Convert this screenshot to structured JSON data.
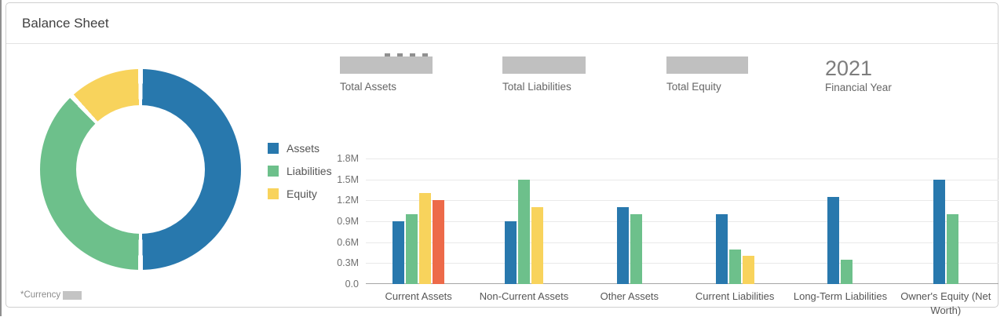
{
  "header": {
    "title": "Balance Sheet"
  },
  "kpis": [
    {
      "label": "Total Assets",
      "value": "",
      "redacted": true
    },
    {
      "label": "Total Liabilities",
      "value": "",
      "redacted": true
    },
    {
      "label": "Total Equity",
      "value": "",
      "redacted": true
    },
    {
      "label": "Financial Year",
      "value": "2021",
      "redacted": false
    }
  ],
  "legend": [
    {
      "label": "Assets",
      "color": "#2878ad"
    },
    {
      "label": "Liabilities",
      "color": "#6dc08b"
    },
    {
      "label": "Equity",
      "color": "#f8d35c"
    }
  ],
  "footnote": {
    "label": "*Currency",
    "value_redacted": true
  },
  "chart_data": [
    {
      "type": "pie",
      "subtype": "donut",
      "legend_position": "right",
      "segments": [
        {
          "label": "Assets",
          "pct": 50,
          "color": "#2878ad"
        },
        {
          "label": "Liabilities",
          "pct": 38,
          "color": "#6dc08b"
        },
        {
          "label": "Equity",
          "pct": 12,
          "color": "#f8d35c"
        }
      ]
    },
    {
      "type": "bar",
      "categories": [
        "Current Assets",
        "Non-Current Assets",
        "Other Assets",
        "Current Liabilities",
        "Long-Term Liabilities",
        "Owner's Equity (Net Worth)"
      ],
      "series": [
        {
          "name": "Assets",
          "color": "#2878ad",
          "values": [
            0.9,
            0.9,
            1.1,
            1.0,
            1.25,
            1.5
          ]
        },
        {
          "name": "Liabilities",
          "color": "#6dc08b",
          "values": [
            1.0,
            1.5,
            1.0,
            0.5,
            0.35,
            1.0
          ]
        },
        {
          "name": "Equity",
          "color": "#f8d35c",
          "values": [
            1.3,
            1.1,
            null,
            0.4,
            null,
            null
          ]
        },
        {
          "name": "",
          "color": "#ed6a49",
          "values": [
            1.2,
            null,
            null,
            null,
            null,
            null
          ]
        }
      ],
      "unit": "M",
      "ylim": [
        0,
        1.8
      ],
      "yticks": [
        1.8,
        1.5,
        1.2,
        0.9,
        0.6,
        0.3,
        0.0
      ],
      "ytick_labels": [
        "1.8M",
        "1.5M",
        "1.2M",
        "0.9M",
        "0.6M",
        "0.3M",
        "0.0"
      ],
      "grid": true
    }
  ]
}
